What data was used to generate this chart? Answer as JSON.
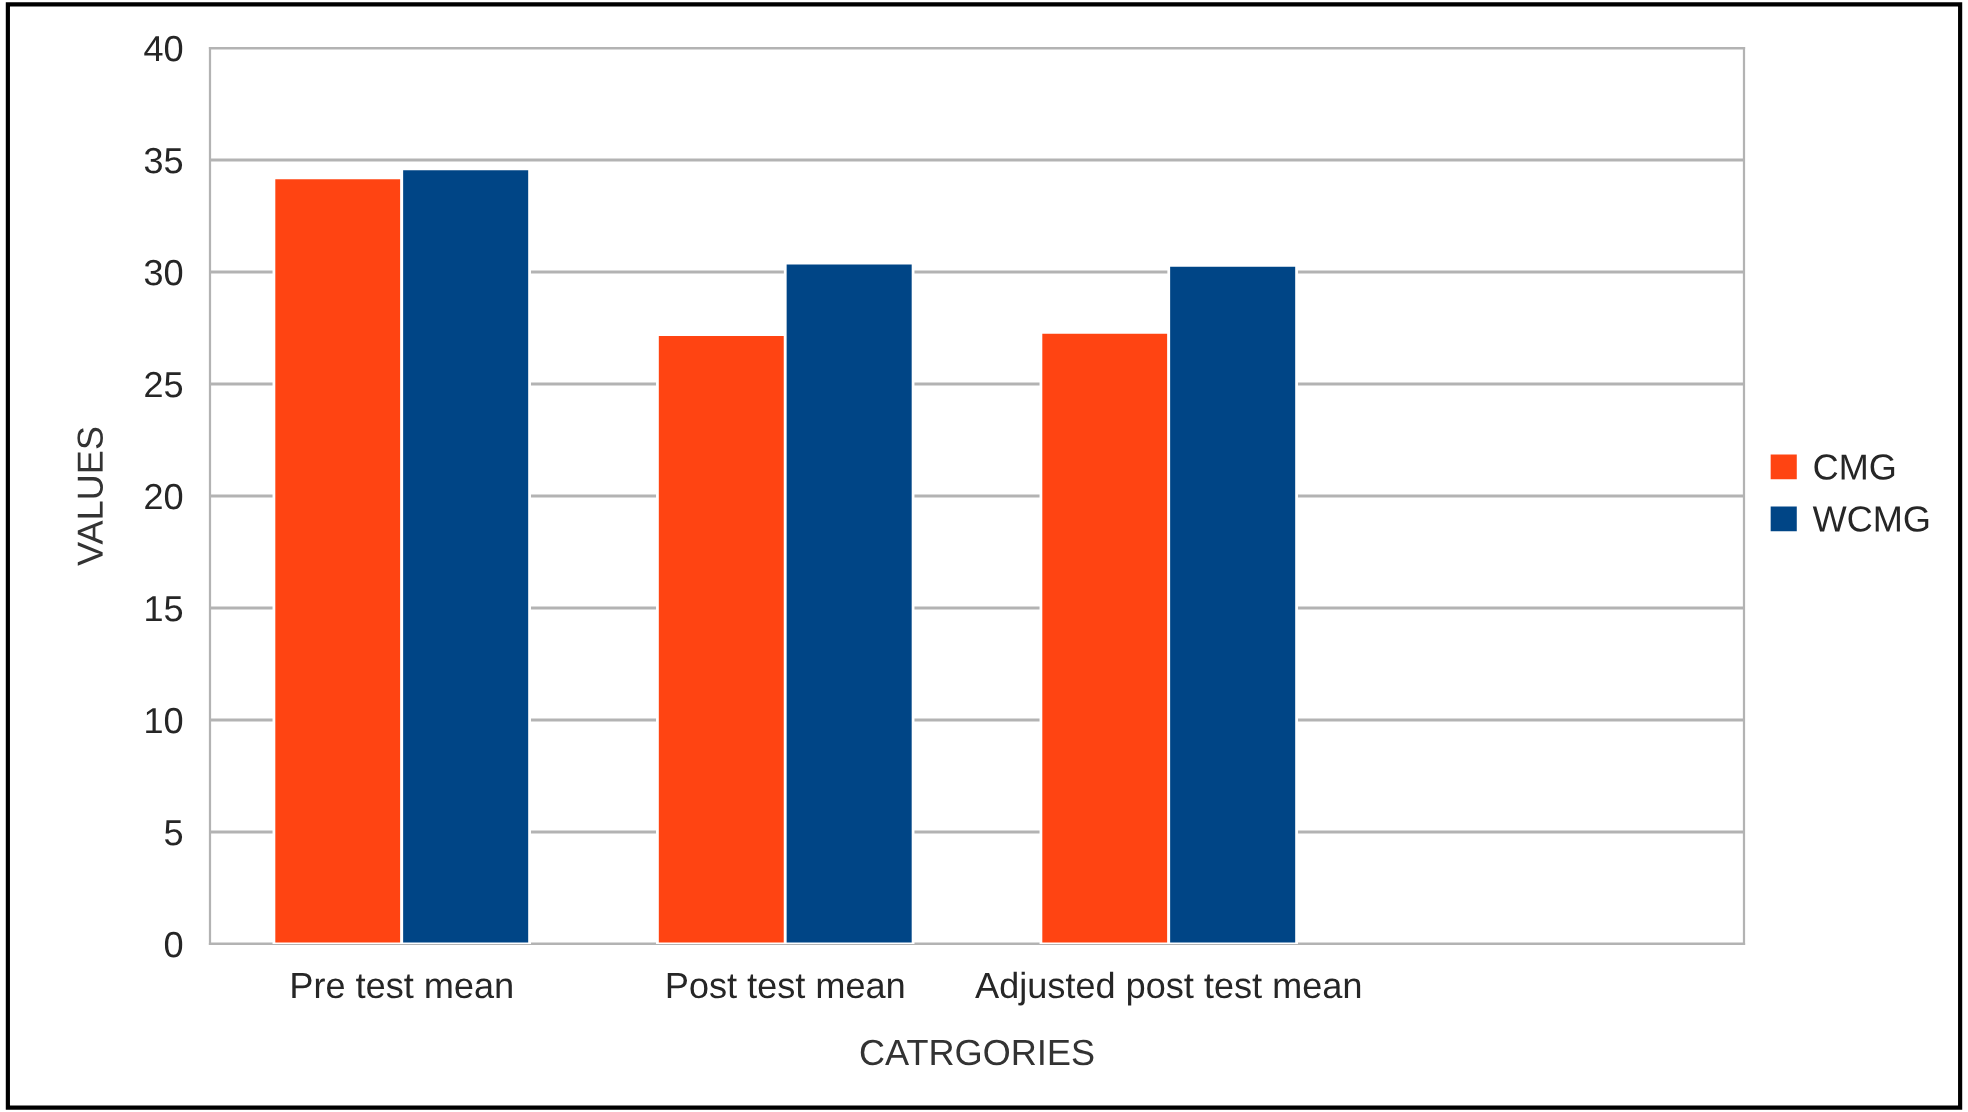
{
  "chart_data": {
    "type": "bar",
    "xlabel": "CATRGORIES",
    "ylabel": "VALUES",
    "categories": [
      "Pre test mean",
      "Post test mean",
      "Adjusted post test mean",
      null
    ],
    "series": [
      {
        "name": "CMG",
        "color": "#ff4412",
        "values": [
          34.2,
          27.2,
          27.3,
          null
        ]
      },
      {
        "name": "WCMG",
        "color": "#004586",
        "values": [
          34.6,
          30.4,
          30.3,
          null
        ]
      }
    ],
    "ylim": [
      0,
      40
    ],
    "yticks": [
      0,
      5,
      10,
      15,
      20,
      25,
      30,
      35,
      40
    ],
    "grid": "y",
    "legend": "right"
  }
}
